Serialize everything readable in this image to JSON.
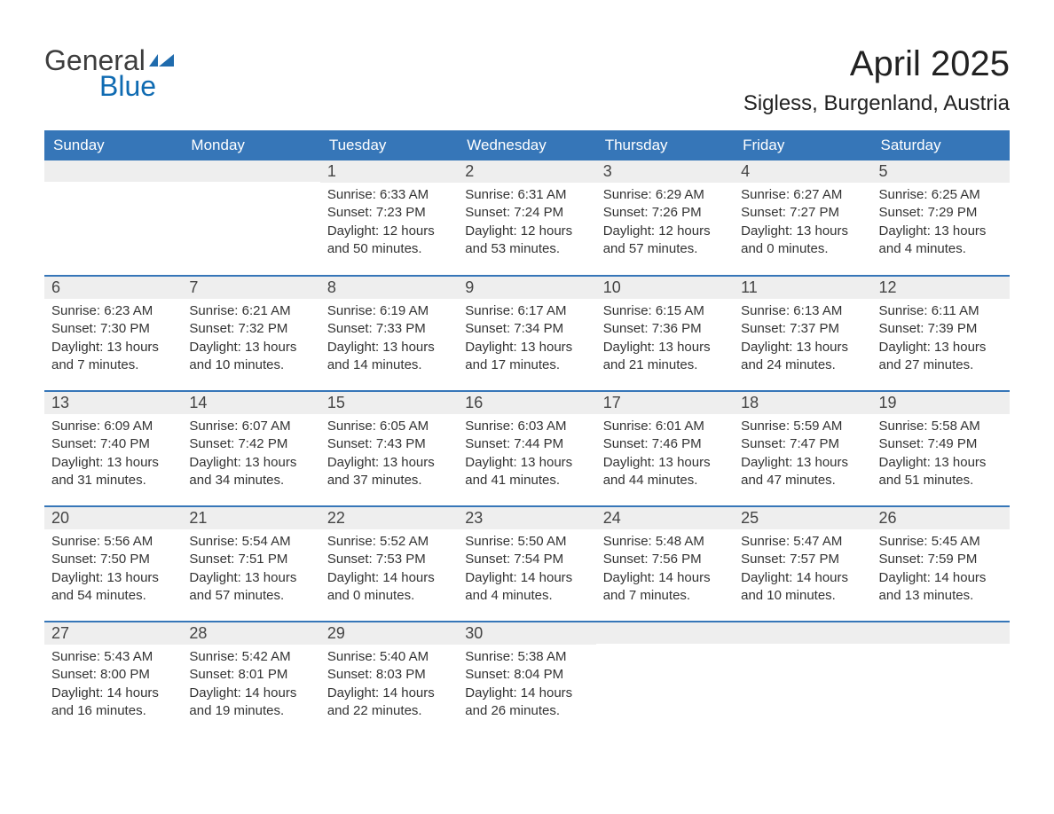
{
  "logo": {
    "text1": "General",
    "text2": "Blue",
    "color1": "#3d3d3d",
    "color2": "#0f6bb2"
  },
  "title": "April 2025",
  "location": "Sigless, Burgenland, Austria",
  "columns": [
    "Sunday",
    "Monday",
    "Tuesday",
    "Wednesday",
    "Thursday",
    "Friday",
    "Saturday"
  ],
  "colors": {
    "header_bg": "#3676b8",
    "header_text": "#ffffff",
    "daynum_bg": "#eeeeee",
    "row_border": "#3676b8",
    "body_text": "#333333"
  },
  "weeks": [
    [
      {
        "day": "",
        "lines": []
      },
      {
        "day": "",
        "lines": []
      },
      {
        "day": "1",
        "lines": [
          "Sunrise: 6:33 AM",
          "Sunset: 7:23 PM",
          "Daylight: 12 hours and 50 minutes."
        ]
      },
      {
        "day": "2",
        "lines": [
          "Sunrise: 6:31 AM",
          "Sunset: 7:24 PM",
          "Daylight: 12 hours and 53 minutes."
        ]
      },
      {
        "day": "3",
        "lines": [
          "Sunrise: 6:29 AM",
          "Sunset: 7:26 PM",
          "Daylight: 12 hours and 57 minutes."
        ]
      },
      {
        "day": "4",
        "lines": [
          "Sunrise: 6:27 AM",
          "Sunset: 7:27 PM",
          "Daylight: 13 hours and 0 minutes."
        ]
      },
      {
        "day": "5",
        "lines": [
          "Sunrise: 6:25 AM",
          "Sunset: 7:29 PM",
          "Daylight: 13 hours and 4 minutes."
        ]
      }
    ],
    [
      {
        "day": "6",
        "lines": [
          "Sunrise: 6:23 AM",
          "Sunset: 7:30 PM",
          "Daylight: 13 hours and 7 minutes."
        ]
      },
      {
        "day": "7",
        "lines": [
          "Sunrise: 6:21 AM",
          "Sunset: 7:32 PM",
          "Daylight: 13 hours and 10 minutes."
        ]
      },
      {
        "day": "8",
        "lines": [
          "Sunrise: 6:19 AM",
          "Sunset: 7:33 PM",
          "Daylight: 13 hours and 14 minutes."
        ]
      },
      {
        "day": "9",
        "lines": [
          "Sunrise: 6:17 AM",
          "Sunset: 7:34 PM",
          "Daylight: 13 hours and 17 minutes."
        ]
      },
      {
        "day": "10",
        "lines": [
          "Sunrise: 6:15 AM",
          "Sunset: 7:36 PM",
          "Daylight: 13 hours and 21 minutes."
        ]
      },
      {
        "day": "11",
        "lines": [
          "Sunrise: 6:13 AM",
          "Sunset: 7:37 PM",
          "Daylight: 13 hours and 24 minutes."
        ]
      },
      {
        "day": "12",
        "lines": [
          "Sunrise: 6:11 AM",
          "Sunset: 7:39 PM",
          "Daylight: 13 hours and 27 minutes."
        ]
      }
    ],
    [
      {
        "day": "13",
        "lines": [
          "Sunrise: 6:09 AM",
          "Sunset: 7:40 PM",
          "Daylight: 13 hours and 31 minutes."
        ]
      },
      {
        "day": "14",
        "lines": [
          "Sunrise: 6:07 AM",
          "Sunset: 7:42 PM",
          "Daylight: 13 hours and 34 minutes."
        ]
      },
      {
        "day": "15",
        "lines": [
          "Sunrise: 6:05 AM",
          "Sunset: 7:43 PM",
          "Daylight: 13 hours and 37 minutes."
        ]
      },
      {
        "day": "16",
        "lines": [
          "Sunrise: 6:03 AM",
          "Sunset: 7:44 PM",
          "Daylight: 13 hours and 41 minutes."
        ]
      },
      {
        "day": "17",
        "lines": [
          "Sunrise: 6:01 AM",
          "Sunset: 7:46 PM",
          "Daylight: 13 hours and 44 minutes."
        ]
      },
      {
        "day": "18",
        "lines": [
          "Sunrise: 5:59 AM",
          "Sunset: 7:47 PM",
          "Daylight: 13 hours and 47 minutes."
        ]
      },
      {
        "day": "19",
        "lines": [
          "Sunrise: 5:58 AM",
          "Sunset: 7:49 PM",
          "Daylight: 13 hours and 51 minutes."
        ]
      }
    ],
    [
      {
        "day": "20",
        "lines": [
          "Sunrise: 5:56 AM",
          "Sunset: 7:50 PM",
          "Daylight: 13 hours and 54 minutes."
        ]
      },
      {
        "day": "21",
        "lines": [
          "Sunrise: 5:54 AM",
          "Sunset: 7:51 PM",
          "Daylight: 13 hours and 57 minutes."
        ]
      },
      {
        "day": "22",
        "lines": [
          "Sunrise: 5:52 AM",
          "Sunset: 7:53 PM",
          "Daylight: 14 hours and 0 minutes."
        ]
      },
      {
        "day": "23",
        "lines": [
          "Sunrise: 5:50 AM",
          "Sunset: 7:54 PM",
          "Daylight: 14 hours and 4 minutes."
        ]
      },
      {
        "day": "24",
        "lines": [
          "Sunrise: 5:48 AM",
          "Sunset: 7:56 PM",
          "Daylight: 14 hours and 7 minutes."
        ]
      },
      {
        "day": "25",
        "lines": [
          "Sunrise: 5:47 AM",
          "Sunset: 7:57 PM",
          "Daylight: 14 hours and 10 minutes."
        ]
      },
      {
        "day": "26",
        "lines": [
          "Sunrise: 5:45 AM",
          "Sunset: 7:59 PM",
          "Daylight: 14 hours and 13 minutes."
        ]
      }
    ],
    [
      {
        "day": "27",
        "lines": [
          "Sunrise: 5:43 AM",
          "Sunset: 8:00 PM",
          "Daylight: 14 hours and 16 minutes."
        ]
      },
      {
        "day": "28",
        "lines": [
          "Sunrise: 5:42 AM",
          "Sunset: 8:01 PM",
          "Daylight: 14 hours and 19 minutes."
        ]
      },
      {
        "day": "29",
        "lines": [
          "Sunrise: 5:40 AM",
          "Sunset: 8:03 PM",
          "Daylight: 14 hours and 22 minutes."
        ]
      },
      {
        "day": "30",
        "lines": [
          "Sunrise: 5:38 AM",
          "Sunset: 8:04 PM",
          "Daylight: 14 hours and 26 minutes."
        ]
      },
      {
        "day": "",
        "lines": []
      },
      {
        "day": "",
        "lines": []
      },
      {
        "day": "",
        "lines": []
      }
    ]
  ]
}
